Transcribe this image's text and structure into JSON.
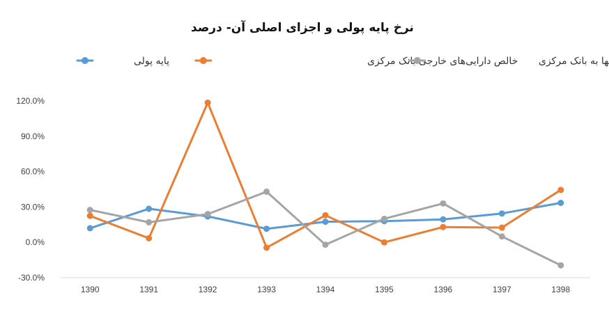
{
  "chart_data": {
    "type": "line",
    "title": "نرخ پایه پولی و اجزای اصلی آن- درصد",
    "xlabel": "",
    "ylabel": "",
    "categories": [
      "1390",
      "1391",
      "1392",
      "1393",
      "1394",
      "1395",
      "1396",
      "1397",
      "1398"
    ],
    "ylim": [
      -30,
      120
    ],
    "yticks": [
      -30,
      0,
      30,
      60,
      90,
      120
    ],
    "ytick_labels": [
      "-30.0%",
      "0.0%",
      "30.0%",
      "60.0%",
      "90.0%",
      "120.0%"
    ],
    "grid": false,
    "legend_position": "top",
    "series": [
      {
        "name": "پایه پولی",
        "color": "#5B9BD5",
        "values": [
          12.0,
          28.5,
          22.0,
          11.5,
          17.5,
          18.0,
          19.5,
          24.5,
          33.5
        ]
      },
      {
        "name": "خالص دارایی‌های خارجی بانک مرکزی",
        "color": "#ED7D31",
        "values": [
          22.5,
          3.5,
          118.5,
          -4.5,
          23.0,
          0.0,
          13.0,
          12.5,
          44.5
        ]
      },
      {
        "name": "بدهی بانکها به بانک مرکزی",
        "color": "#A5A5A5",
        "values": [
          27.5,
          17.0,
          24.0,
          43.0,
          -2.0,
          20.0,
          33.0,
          5.0,
          -19.5
        ]
      }
    ]
  }
}
